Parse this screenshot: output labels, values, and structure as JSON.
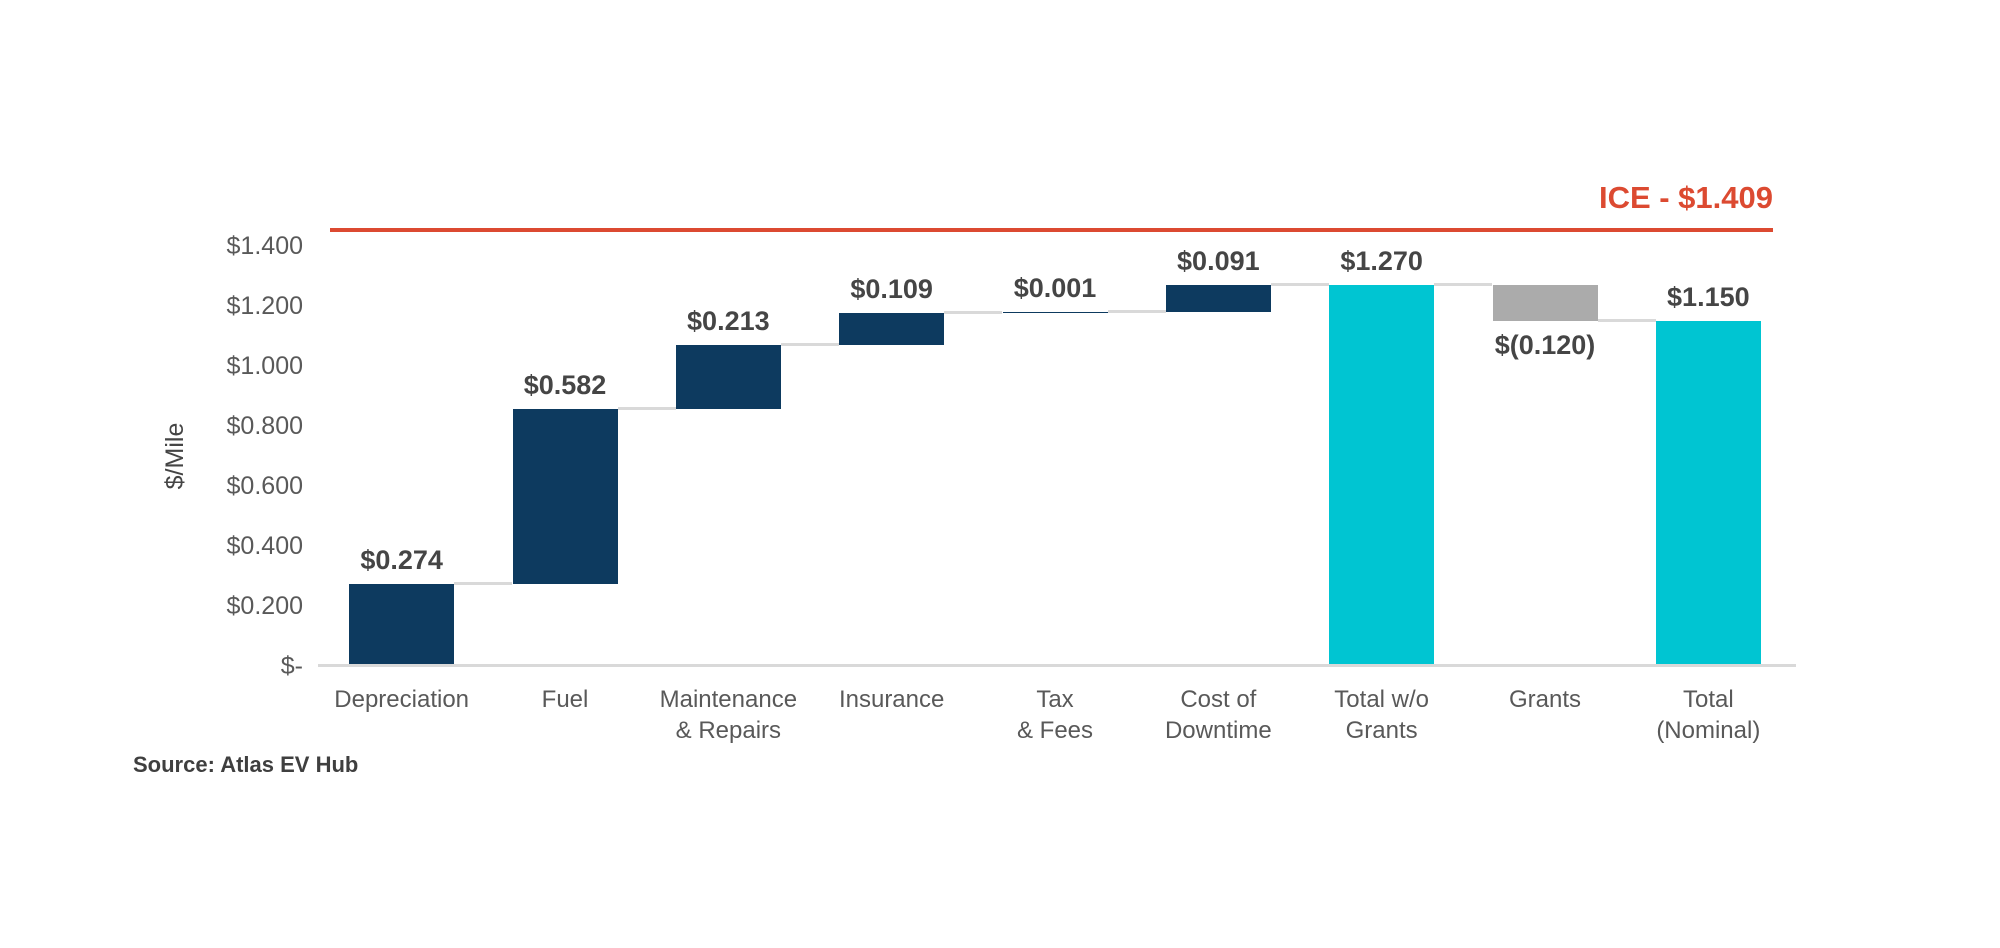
{
  "chart_data": {
    "type": "bar",
    "subtype": "waterfall",
    "title": "",
    "ylabel": "$/Mile",
    "xlabel": "",
    "grid": false,
    "legend": "none",
    "ylim": [
      0,
      1.45
    ],
    "categories": [
      "Depreciation",
      "Fuel",
      "Maintenance & Repairs",
      "Insurance",
      "Tax & Fees",
      "Cost of Downtime",
      "Total w/o Grants",
      "Grants",
      "Total (Nominal)"
    ],
    "steps": [
      {
        "label": "Depreciation",
        "value": 0.274,
        "kind": "delta",
        "display": "$0.274",
        "color": "navy",
        "label_position": "above"
      },
      {
        "label": "Fuel",
        "value": 0.582,
        "kind": "delta",
        "display": "$0.582",
        "color": "navy",
        "label_position": "above"
      },
      {
        "label": "Maintenance\n& Repairs",
        "value": 0.213,
        "kind": "delta",
        "display": "$0.213",
        "color": "navy",
        "label_position": "above"
      },
      {
        "label": "Insurance",
        "value": 0.109,
        "kind": "delta",
        "display": "$0.109",
        "color": "navy",
        "label_position": "above"
      },
      {
        "label": "Tax\n& Fees",
        "value": 0.001,
        "kind": "delta",
        "display": "$0.001",
        "color": "navy",
        "label_position": "above"
      },
      {
        "label": "Cost of\nDowntime",
        "value": 0.091,
        "kind": "delta",
        "display": "$0.091",
        "color": "navy",
        "label_position": "above"
      },
      {
        "label": "Total w/o\nGrants",
        "value": 1.27,
        "kind": "total",
        "display": "$1.270",
        "color": "cyan",
        "label_position": "above"
      },
      {
        "label": "Grants",
        "value": -0.12,
        "kind": "delta",
        "display": "$(0.120)",
        "color": "gray",
        "label_position": "below"
      },
      {
        "label": "Total\n(Nominal)",
        "value": 1.15,
        "kind": "total",
        "display": "$1.150",
        "color": "cyan",
        "label_position": "above"
      }
    ],
    "yticks": [
      {
        "value": 0.0,
        "label": "$-"
      },
      {
        "value": 0.2,
        "label": "$0.200"
      },
      {
        "value": 0.4,
        "label": "$0.400"
      },
      {
        "value": 0.6,
        "label": "$0.600"
      },
      {
        "value": 0.8,
        "label": "$0.800"
      },
      {
        "value": 1.0,
        "label": "$1.000"
      },
      {
        "value": 1.2,
        "label": "$1.200"
      },
      {
        "value": 1.4,
        "label": "$1.400"
      }
    ],
    "reference_line": {
      "label": "ICE - $1.409",
      "value": 1.409
    },
    "source": "Source: Atlas EV Hub"
  },
  "colors": {
    "navy": "#0D3A5F",
    "cyan": "#00C5D2",
    "gray": "#ABABAB",
    "reference": "#DC4A31",
    "axis_line": "#D9D9D9",
    "connector": "#D9D9D9",
    "value_label": "#454545",
    "tick_label": "#595959"
  }
}
